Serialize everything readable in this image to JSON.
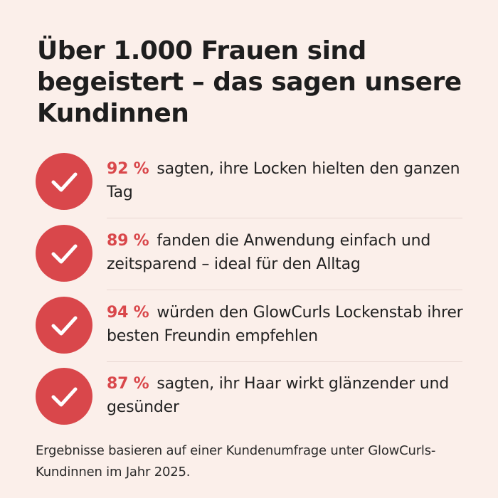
{
  "title": "Über 1.000 Frauen sind begeistert – das sagen unsere Kundinnen",
  "colors": {
    "background": "#fbefea",
    "accent": "#d9474b",
    "text": "#1f1f1f"
  },
  "stats": [
    {
      "icon": "check-icon",
      "percent": "92 %",
      "text": "sagten, ihre Locken hielten den ganzen Tag"
    },
    {
      "icon": "check-icon",
      "percent": "89 %",
      "text": "fanden die Anwendung einfach und zeitsparend – ideal für den Alltag"
    },
    {
      "icon": "check-icon",
      "percent": "94 %",
      "text": "würden den GlowCurls Lockenstab ihrer besten Freundin empfehlen"
    },
    {
      "icon": "check-icon",
      "percent": "87 %",
      "text": "sagten, ihr Haar wirkt glänzender und gesünder"
    }
  ],
  "footnote": "Ergebnisse basieren auf einer Kundenumfrage unter GlowCurls-Kundinnen im Jahr 2025."
}
